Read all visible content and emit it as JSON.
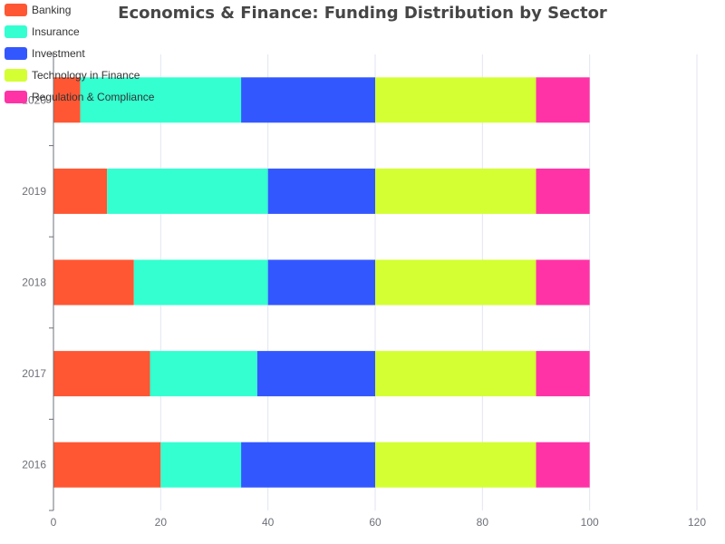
{
  "chart_data": {
    "type": "bar",
    "orientation": "horizontal",
    "stacked": true,
    "title": "Economics & Finance: Funding Distribution by Sector",
    "categories": [
      "2016",
      "2017",
      "2018",
      "2019",
      "2020"
    ],
    "series": [
      {
        "name": "Banking",
        "color": "#ff5733",
        "values": [
          20,
          18,
          15,
          10,
          5
        ]
      },
      {
        "name": "Insurance",
        "color": "#33ffd1",
        "values": [
          15,
          20,
          25,
          30,
          30
        ]
      },
      {
        "name": "Investment",
        "color": "#3357ff",
        "values": [
          25,
          22,
          20,
          20,
          25
        ]
      },
      {
        "name": "Technology in Finance",
        "color": "#d4ff33",
        "values": [
          30,
          30,
          30,
          30,
          30
        ]
      },
      {
        "name": "Regulation & Compliance",
        "color": "#ff33a6",
        "values": [
          10,
          10,
          10,
          10,
          10
        ]
      }
    ],
    "xlim": [
      0,
      120
    ],
    "xticks": [
      0,
      20,
      40,
      60,
      80,
      100,
      120
    ],
    "xlabel": "",
    "ylabel": "",
    "grid": true,
    "legend_position": "top-left"
  }
}
